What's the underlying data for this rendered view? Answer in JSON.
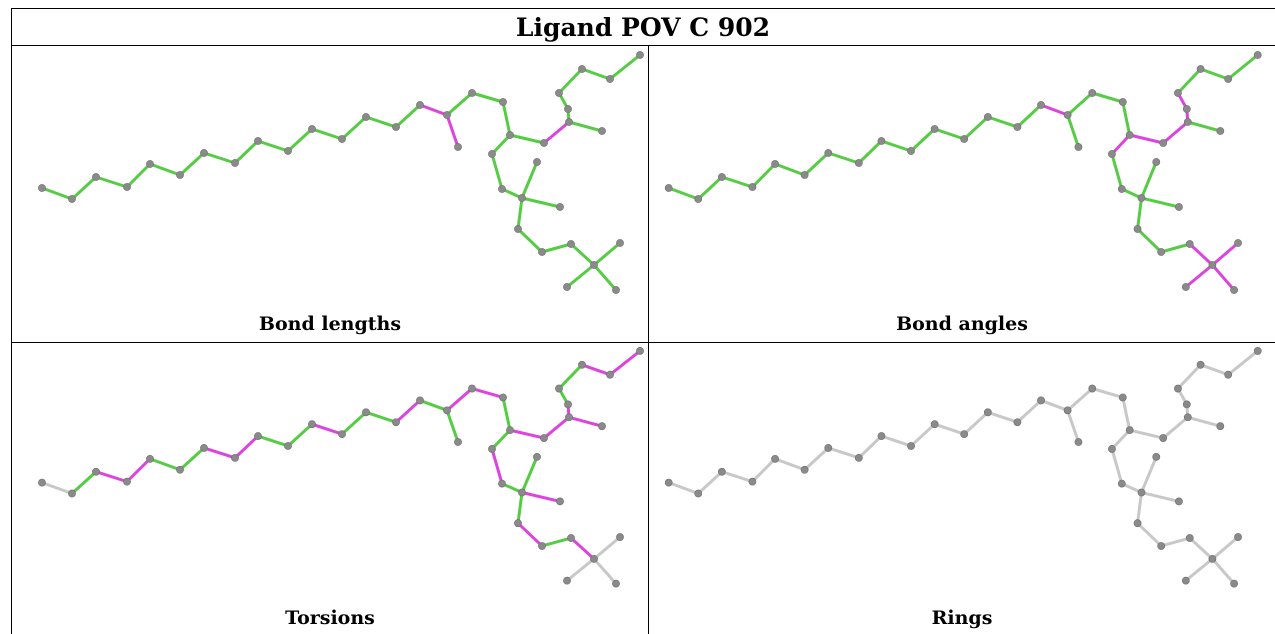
{
  "title": "Ligand POV C 902",
  "panels": [
    {
      "caption": "Bond lengths",
      "scheme": "lengths"
    },
    {
      "caption": "Bond angles",
      "scheme": "angles"
    },
    {
      "caption": "Torsions",
      "scheme": "torsions"
    },
    {
      "caption": "Rings",
      "scheme": "rings"
    }
  ],
  "colors": {
    "good": "#55cc44",
    "outlier": "#dd44dd",
    "neutral": "#c8c8c8",
    "atom": "#8a8a8a",
    "border": "#000000"
  }
}
